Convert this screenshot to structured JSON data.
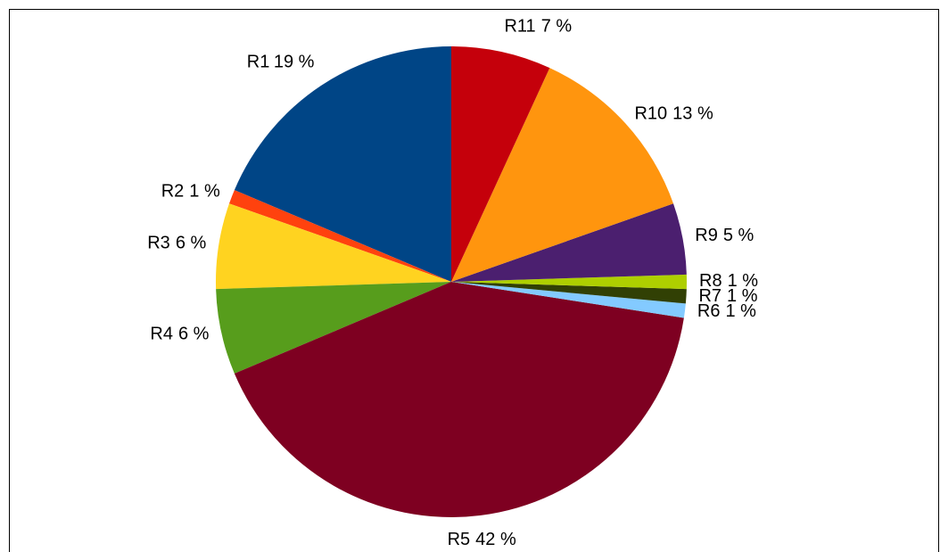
{
  "chart_data": {
    "type": "pie",
    "categories": [
      "R1",
      "R2",
      "R3",
      "R4",
      "R5",
      "R6",
      "R7",
      "R8",
      "R9",
      "R10",
      "R11"
    ],
    "values": [
      19,
      1,
      6,
      6,
      42,
      1,
      1,
      1,
      5,
      13,
      7
    ],
    "value_labels": [
      "19 %",
      "1 %",
      "6 %",
      "6 %",
      "42 %",
      "1 %",
      "1 %",
      "1 %",
      "5 %",
      "13 %",
      "7 %"
    ],
    "colors": [
      "#004586",
      "#ff420e",
      "#ffd320",
      "#579d1c",
      "#7e0021",
      "#83caff",
      "#314004",
      "#aecf00",
      "#4b1f6f",
      "#ff950e",
      "#c5000b"
    ]
  }
}
